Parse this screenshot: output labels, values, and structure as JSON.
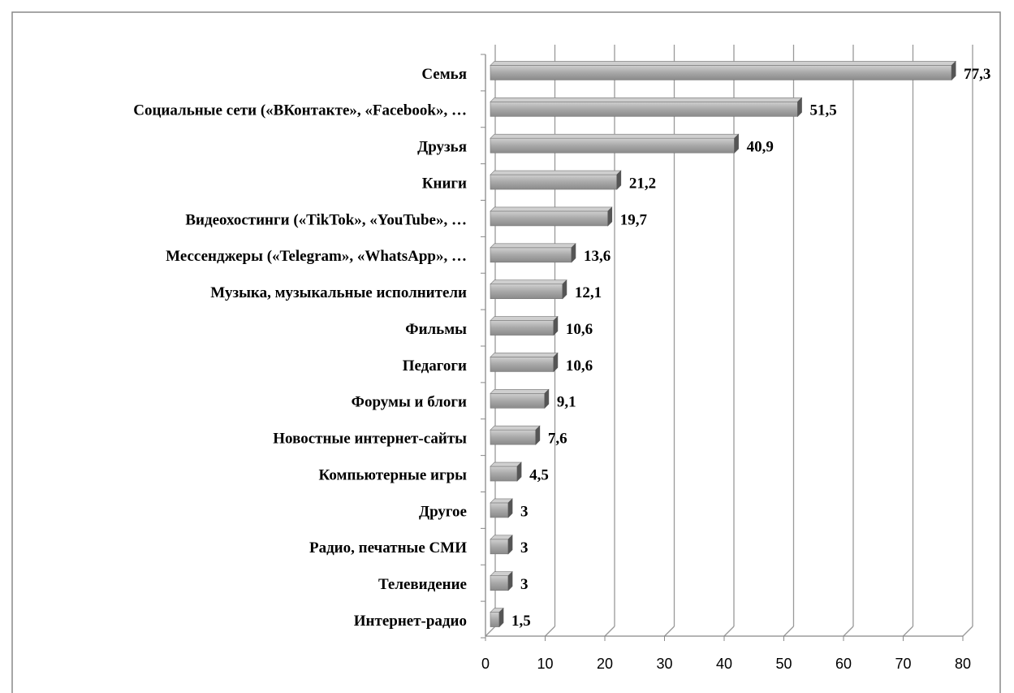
{
  "chart_data": {
    "type": "bar3d_horizontal",
    "categories": [
      "Семья",
      "Социальные сети («ВКонтакте», «Facebook», …",
      "Друзья",
      "Книги",
      "Видеохостинги («TikTok», «YouTube», …",
      "Мессенджеры («Telegram», «WhatsApp», …",
      "Музыка, музыкальные исполнители",
      "Фильмы",
      "Педагоги",
      "Форумы и блоги",
      "Новостные интернет-сайты",
      "Компьютерные игры",
      "Другое",
      "Радио, печатные СМИ",
      "Телевидение",
      "Интернет-радио"
    ],
    "values": [
      77.3,
      51.5,
      40.9,
      21.2,
      19.7,
      13.6,
      12.1,
      10.6,
      10.6,
      9.1,
      7.6,
      4.5,
      3,
      3,
      3,
      1.5
    ],
    "value_labels": [
      "77,3",
      "51,5",
      "40,9",
      "21,2",
      "19,7",
      "13,6",
      "12,1",
      "10,6",
      "10,6",
      "9,1",
      "7,6",
      "4,5",
      "3",
      "3",
      "3",
      "1,5"
    ],
    "color": "#a6a6a6",
    "xlim": [
      0,
      80
    ],
    "xticks": [
      0,
      10,
      20,
      30,
      40,
      50,
      60,
      70,
      80
    ],
    "grid": true
  }
}
